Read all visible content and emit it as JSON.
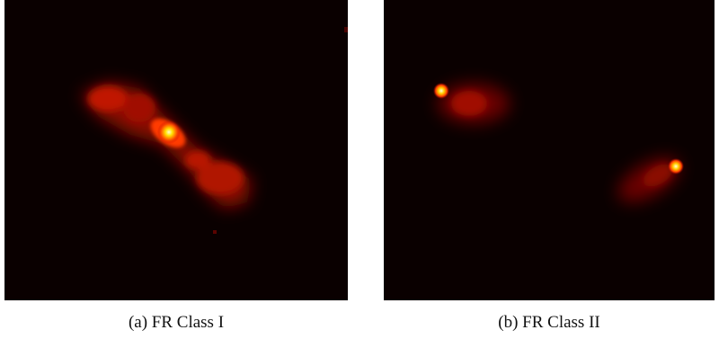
{
  "figure": {
    "panels": [
      {
        "caption": "(a) FR Class I",
        "background": "#0a0000",
        "colormap": "hot"
      },
      {
        "caption": "(b) FR Class II",
        "background": "#0a0000",
        "colormap": "hot"
      }
    ]
  }
}
